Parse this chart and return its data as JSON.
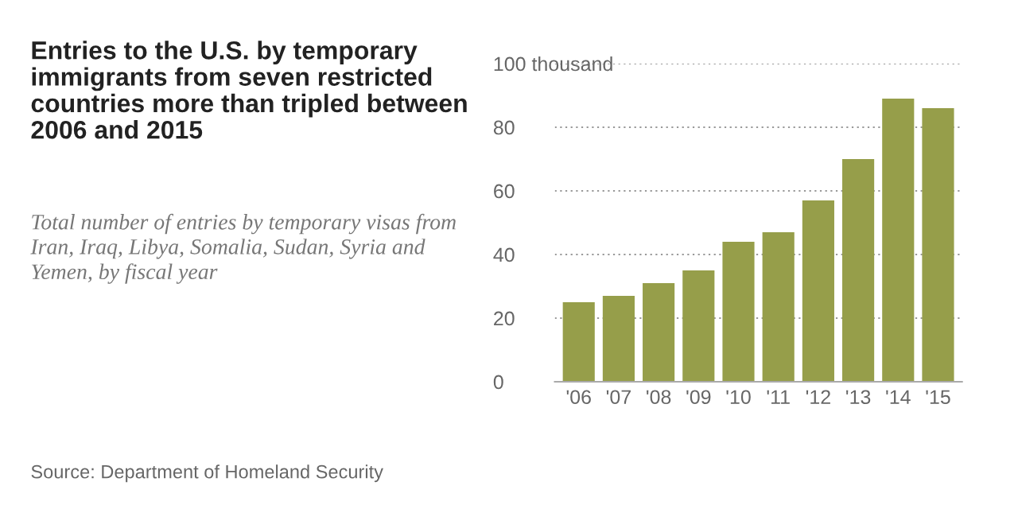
{
  "chart_data": {
    "type": "bar",
    "title": "Entries to the U.S. by temporary immigrants from seven restricted countries more than tripled between 2006 and 2015",
    "subtitle": "Total number of entries by temporary visas from Iran, Iraq, Libya, Somalia, Sudan, Syria and Yemen, by fiscal year",
    "categories": [
      "'06",
      "'07",
      "'08",
      "'09",
      "'10",
      "'11",
      "'12",
      "'13",
      "'14",
      "'15"
    ],
    "values": [
      25,
      27,
      31,
      35,
      44,
      47,
      57,
      70,
      89,
      86
    ],
    "color": "#969e4a",
    "ylim": [
      0,
      100
    ],
    "yticks": [
      0,
      20,
      40,
      60,
      80,
      {
        "value": 100,
        "label": "100 thousand"
      }
    ],
    "grid": "y",
    "annotations": [
      "Source: Department of Homeland Security"
    ]
  }
}
